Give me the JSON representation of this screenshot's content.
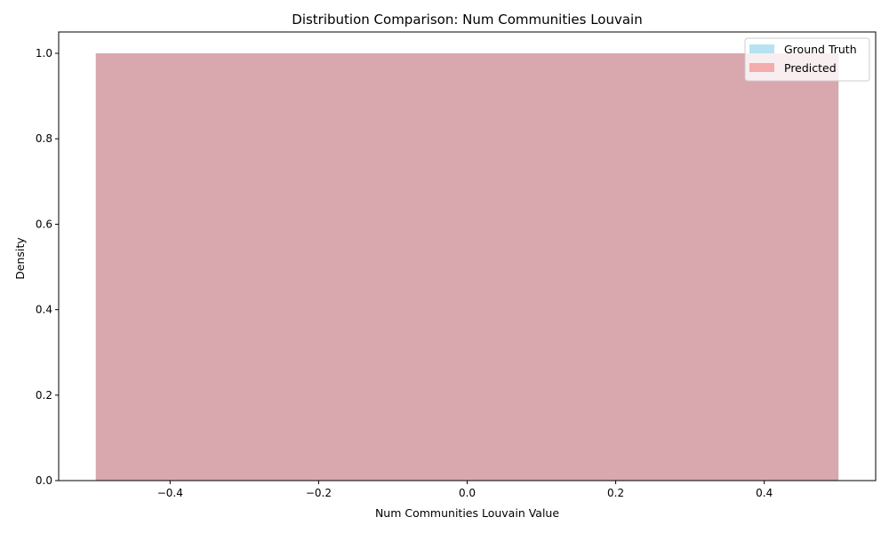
{
  "chart_data": {
    "type": "bar",
    "title": "Distribution Comparison: Num Communities Louvain",
    "xlabel": "Num Communities Louvain Value",
    "ylabel": "Density",
    "xlim": [
      -0.55,
      0.55
    ],
    "ylim": [
      0,
      1.05
    ],
    "xticks": [
      "−0.4",
      "−0.2",
      "0.0",
      "0.2",
      "0.4"
    ],
    "xtick_values": [
      -0.4,
      -0.2,
      0.0,
      0.2,
      0.4
    ],
    "yticks": [
      "0.0",
      "0.2",
      "0.4",
      "0.6",
      "0.8",
      "1.0"
    ],
    "ytick_values": [
      0.0,
      0.2,
      0.4,
      0.6,
      0.8,
      1.0
    ],
    "grid": false,
    "legend_position": "top-right",
    "series": [
      {
        "name": "Ground Truth",
        "color": "#87ceeb",
        "alpha": 0.6,
        "bins": [
          {
            "x0": -0.5,
            "x1": 0.5,
            "density": 1.0
          }
        ]
      },
      {
        "name": "Predicted",
        "color": "#f08080",
        "alpha": 0.6,
        "bins": [
          {
            "x0": -0.5,
            "x1": 0.5,
            "density": 1.0
          }
        ]
      }
    ]
  }
}
